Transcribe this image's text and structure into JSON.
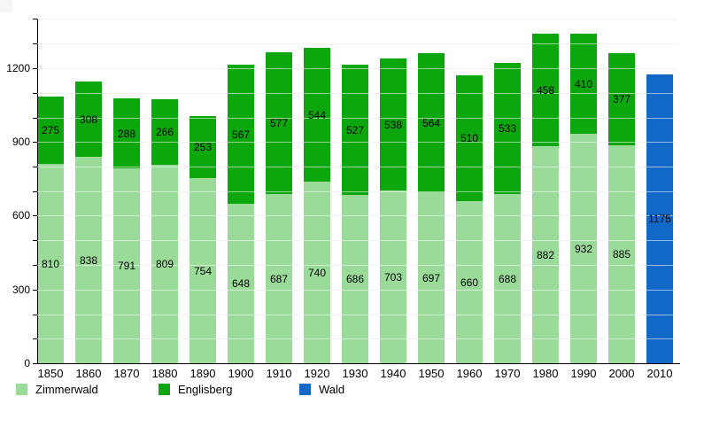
{
  "chart_data": {
    "type": "bar",
    "stacked": true,
    "title": "",
    "xlabel": "",
    "ylabel": "",
    "categories": [
      "1850",
      "1860",
      "1870",
      "1880",
      "1890",
      "1900",
      "1910",
      "1920",
      "1930",
      "1940",
      "1950",
      "1960",
      "1970",
      "1980",
      "1990",
      "2000",
      "2010"
    ],
    "series": [
      {
        "name": "Zimmerwald",
        "color": "#9ADB9A",
        "values": [
          810,
          838,
          791,
          809,
          754,
          648,
          687,
          740,
          686,
          703,
          697,
          660,
          688,
          882,
          932,
          885,
          0
        ]
      },
      {
        "name": "Englisberg",
        "color": "#0CA70C",
        "values": [
          275,
          308,
          288,
          266,
          253,
          567,
          577,
          544,
          527,
          538,
          564,
          510,
          533,
          458,
          410,
          377,
          0
        ]
      },
      {
        "name": "Wald",
        "color": "#1168C6",
        "values": [
          0,
          0,
          0,
          0,
          0,
          0,
          0,
          0,
          0,
          0,
          0,
          0,
          0,
          0,
          0,
          0,
          1175
        ]
      }
    ],
    "ylim": [
      0,
      1400
    ],
    "yticks": [
      0,
      300,
      600,
      900,
      1200
    ],
    "tick_step": 100,
    "gridline_step": 100,
    "grid": true,
    "legend_position": "bottom",
    "colors": {
      "axis": "#000000",
      "gridline": "#e4e4e4",
      "background": "#ffffff",
      "label_text": "#000000"
    }
  }
}
